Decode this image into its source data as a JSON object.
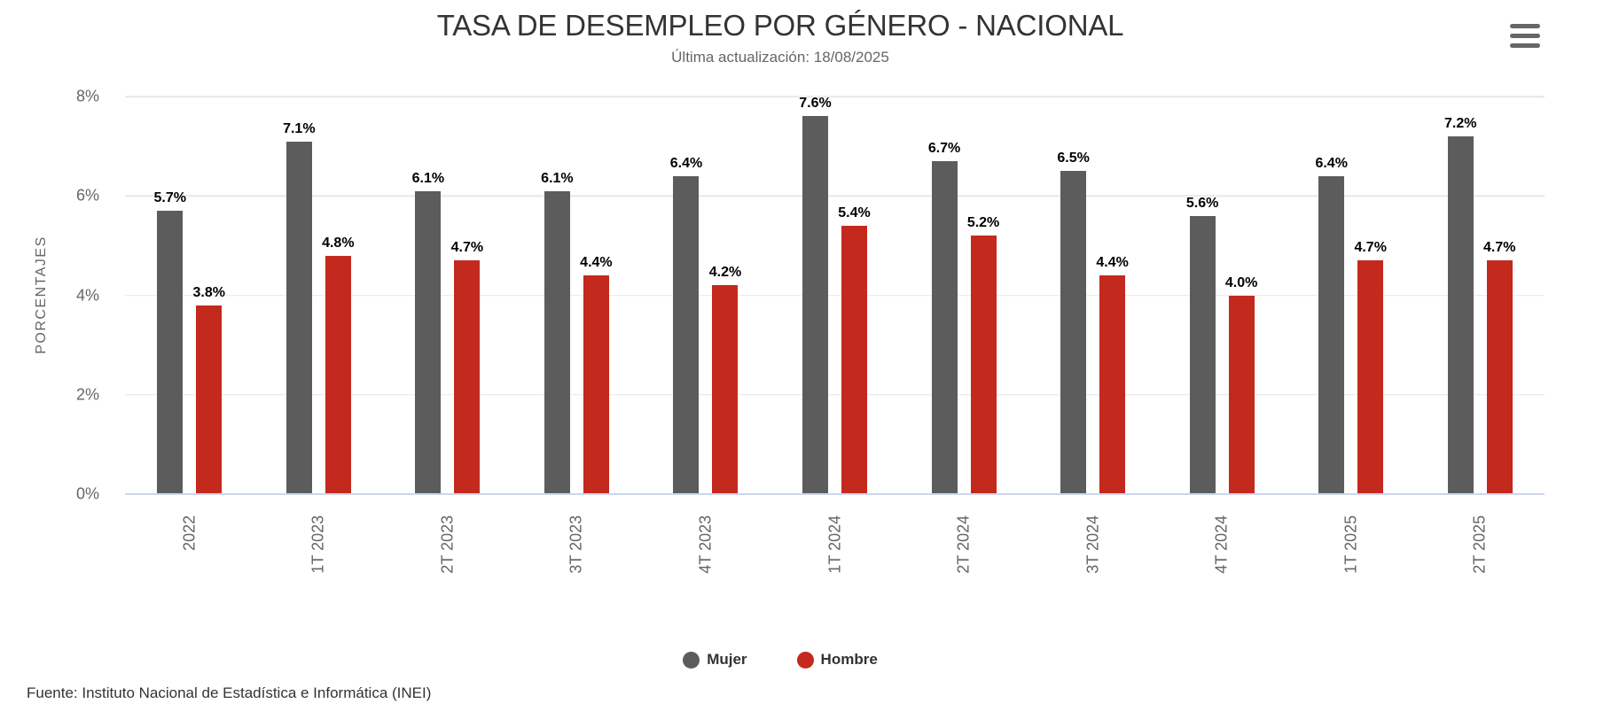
{
  "chart": {
    "title": "TASA DE DESEMPLEO POR GÉNERO - NACIONAL",
    "subtitle": "Última actualización: 18/08/2025",
    "y_axis_title": "PORCENTAJES",
    "source": "Fuente: Instituto Nacional de Estadística e Informática (INEI)",
    "icons": {
      "context_menu": "hamburger-icon"
    },
    "colors": {
      "mujer": "#5c5c5c",
      "hombre": "#c4291d",
      "axis_line": "#ccd6eb",
      "gridline": "#e7e7e7"
    }
  },
  "chart_data": {
    "type": "bar",
    "categories": [
      "2022",
      "1T 2023",
      "2T 2023",
      "3T 2023",
      "4T 2023",
      "1T 2024",
      "2T 2024",
      "3T 2024",
      "4T 2024",
      "1T 2025",
      "2T 2025"
    ],
    "series": [
      {
        "name": "Mujer",
        "color": "#5c5c5c",
        "values": [
          5.7,
          7.1,
          6.1,
          6.1,
          6.4,
          7.6,
          6.7,
          6.5,
          5.6,
          6.4,
          7.2
        ]
      },
      {
        "name": "Hombre",
        "color": "#c4291d",
        "values": [
          3.8,
          4.8,
          4.7,
          4.4,
          4.2,
          5.4,
          5.2,
          4.4,
          4.0,
          4.7,
          4.7
        ]
      }
    ],
    "title": "TASA DE DESEMPLEO POR GÉNERO - NACIONAL",
    "subtitle": "Última actualización: 18/08/2025",
    "xlabel": "",
    "ylabel": "PORCENTAJES",
    "ylim": [
      0,
      8
    ],
    "y_ticks": [
      8,
      6,
      4,
      2,
      0
    ],
    "y_tick_format": "{value}%",
    "data_label_format": "{value:.1f}%",
    "grid": true,
    "legend_position": "bottom"
  }
}
